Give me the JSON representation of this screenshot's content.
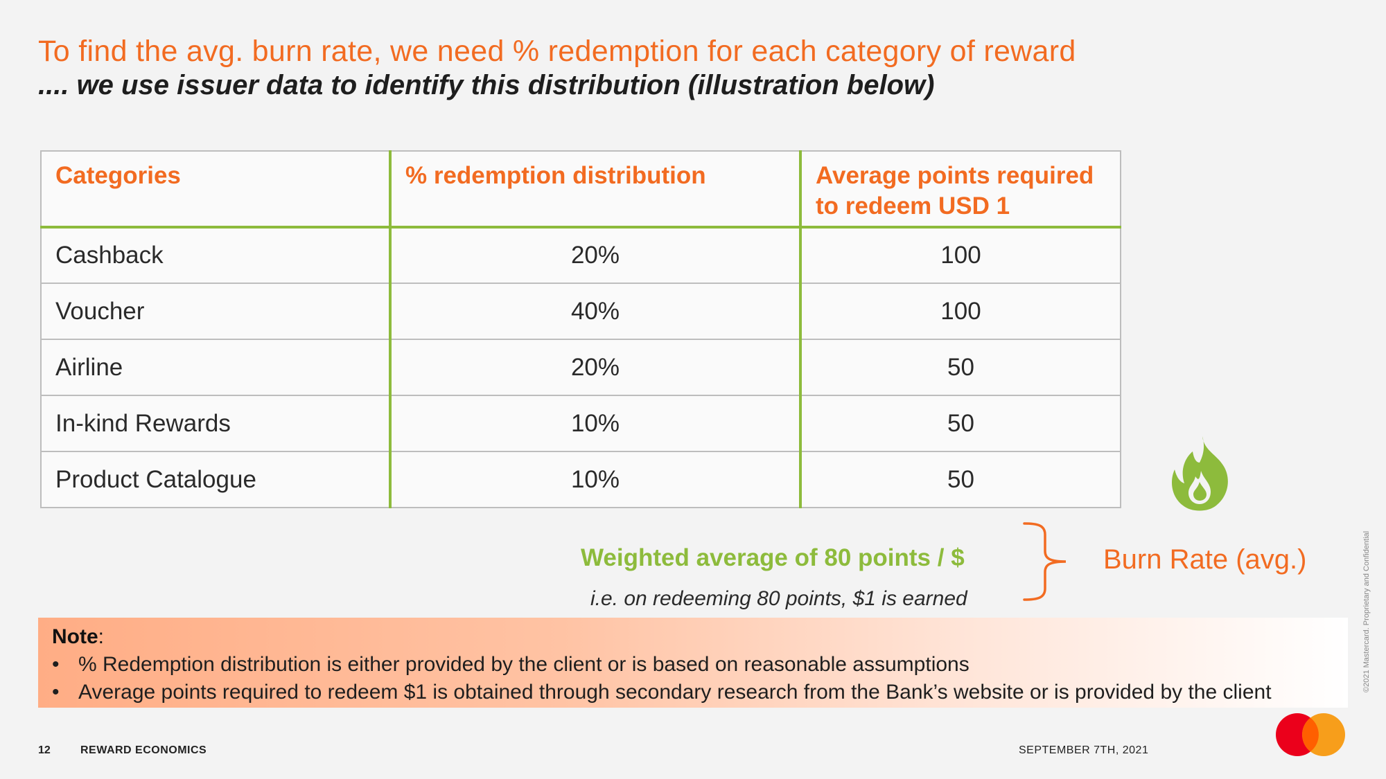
{
  "header": {
    "title": "To find the avg. burn rate, we need % redemption for each category of reward",
    "subtitle": ".... we use issuer data to identify this distribution (illustration below)"
  },
  "table": {
    "headers": [
      "Categories",
      "% redemption distribution",
      "Average points required to redeem USD 1"
    ],
    "rows": [
      {
        "category": "Cashback",
        "distribution": "20%",
        "points": "100"
      },
      {
        "category": "Voucher",
        "distribution": "40%",
        "points": "100"
      },
      {
        "category": "Airline",
        "distribution": "20%",
        "points": "50"
      },
      {
        "category": "In-kind Rewards",
        "distribution": "10%",
        "points": "50"
      },
      {
        "category": "Product Catalogue",
        "distribution": "10%",
        "points": "50"
      }
    ]
  },
  "summary": {
    "weighted": "Weighted average of 80 points / $",
    "explanation": "i.e. on redeeming 80 points, $1 is earned",
    "burn_rate_label": "Burn Rate (avg.)"
  },
  "note": {
    "heading": "Note",
    "bullets": [
      "% Redemption distribution is either provided by the client or is based on reasonable assumptions",
      "Average points required to redeem $1 is obtained through secondary research from the Bank’s website or is provided by the client"
    ]
  },
  "footer": {
    "page_number": "12",
    "section": "REWARD ECONOMICS",
    "date": "SEPTEMBER 7TH, 2021",
    "copyright": "©2021 Mastercard. Proprietary and Confidential"
  },
  "colors": {
    "accent_orange": "#f26b21",
    "accent_green": "#8dbb3c",
    "logo_red": "#eb001b",
    "logo_yellow": "#f79e1b"
  },
  "icons": [
    "flame-icon",
    "curly-brace-icon",
    "mastercard-logo"
  ]
}
